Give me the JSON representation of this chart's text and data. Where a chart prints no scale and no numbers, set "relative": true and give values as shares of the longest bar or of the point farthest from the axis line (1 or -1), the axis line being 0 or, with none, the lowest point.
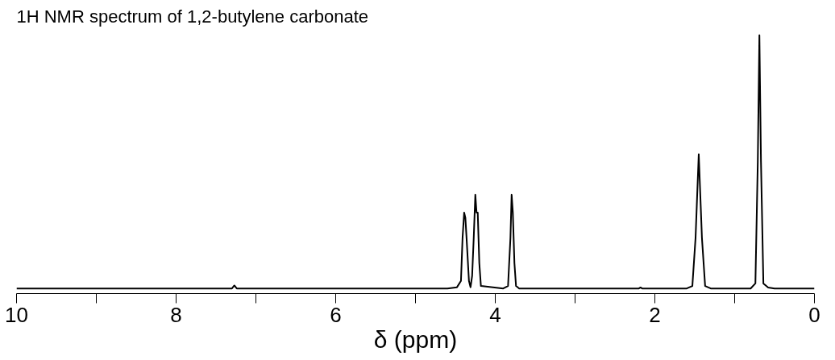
{
  "chart_data": {
    "type": "line",
    "title": "1H NMR spectrum of 1,2-butylene carbonate",
    "xlabel": "δ (ppm)",
    "relative": true,
    "grid": false,
    "marker": "none",
    "line_style": "solid",
    "tick_labels": "x",
    "xlim": [
      10,
      0
    ],
    "xticks": [
      10,
      {
        "value": 9,
        "label": null
      },
      8,
      {
        "value": 7,
        "label": null
      },
      6,
      {
        "value": 5,
        "label": null
      },
      4,
      {
        "value": 3,
        "label": null
      },
      2,
      {
        "value": 1,
        "label": null
      },
      0
    ],
    "series": [
      {
        "color": "#000000",
        "x": [
          10,
          7.3,
          7.27,
          7.24,
          4.6,
          4.48,
          4.43,
          4.41,
          4.39,
          4.375,
          4.36,
          4.33,
          4.31,
          4.29,
          4.27,
          4.25,
          4.235,
          4.22,
          4.2,
          4.18,
          3.9,
          3.84,
          3.81,
          3.795,
          3.78,
          3.76,
          3.74,
          3.7,
          2.2,
          2.18,
          2.16,
          1.6,
          1.53,
          1.49,
          1.45,
          1.41,
          1.37,
          1.3,
          0.8,
          0.74,
          0.71,
          0.69,
          0.67,
          0.64,
          0.58,
          0.5,
          0
        ],
        "values": [
          0,
          0,
          0.012,
          0,
          0,
          0.005,
          0.03,
          0.2,
          0.3,
          0.28,
          0.2,
          0.03,
          0.005,
          0.05,
          0.2,
          0.37,
          0.3,
          0.3,
          0.1,
          0.01,
          0,
          0.01,
          0.2,
          0.37,
          0.3,
          0.1,
          0.01,
          0,
          0,
          0.004,
          0,
          0,
          0.01,
          0.2,
          0.53,
          0.2,
          0.01,
          0,
          0,
          0.02,
          0.5,
          1.0,
          0.5,
          0.02,
          0.004,
          0,
          0
        ]
      }
    ]
  }
}
